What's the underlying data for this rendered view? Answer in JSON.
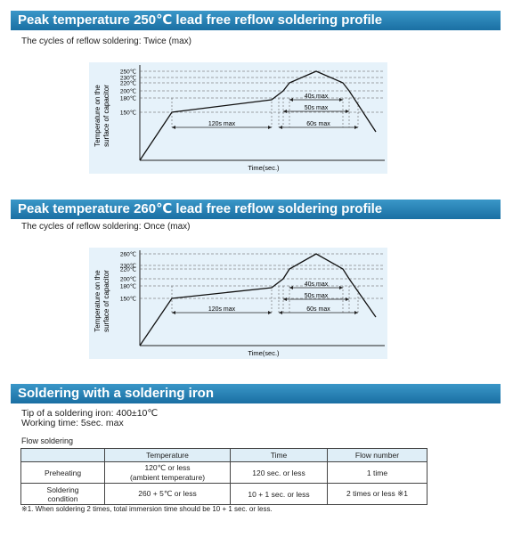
{
  "profiles": [
    {
      "title": "Peak temperature 250℃ lead free reflow soldering profile",
      "subtitle": "The cycles of reflow soldering: Twice (max)",
      "y_axis_label": [
        "Temperature on the",
        "surface of capacitor"
      ],
      "x_axis_label": "Time(sec.)",
      "temperature_labels": [
        "250℃",
        "230℃",
        "220℃",
        "200℃",
        "180℃",
        "150℃"
      ],
      "durations": [
        "120s max",
        "40s max",
        "50s max",
        "60s max"
      ]
    },
    {
      "title": "Peak temperature 260℃ lead free reflow soldering profile",
      "subtitle": "The cycles of reflow soldering: Once (max)",
      "y_axis_label": [
        "Temperature on the",
        "surface of capacitor"
      ],
      "x_axis_label": "Time(sec.)",
      "temperature_labels": [
        "260℃",
        "230℃",
        "220℃",
        "200℃",
        "180℃",
        "150℃"
      ],
      "durations": [
        "120s max",
        "40s max",
        "50s max",
        "60s max"
      ]
    }
  ],
  "iron": {
    "title": "Soldering with a soldering iron",
    "lines": [
      "Tip of a soldering iron: 400±10℃",
      "Working time: 5sec. max"
    ],
    "table_title": "Flow soldering",
    "table": {
      "header": [
        "",
        "Temperature",
        "Time",
        "Flow number"
      ],
      "rows": [
        [
          [
            "Preheating"
          ],
          [
            "120℃ or less",
            "(ambient temperature)"
          ],
          [
            "120 sec. or less"
          ],
          [
            "1 time"
          ]
        ],
        [
          [
            "Soldering",
            "condition"
          ],
          [
            "260 + 5℃ or less"
          ],
          [
            "10 + 1 sec. or less"
          ],
          [
            "2 times or less ※1"
          ]
        ]
      ]
    },
    "footnote": "※1. When soldering 2 times, total immersion time should be 10 + 1 sec. or less."
  }
}
